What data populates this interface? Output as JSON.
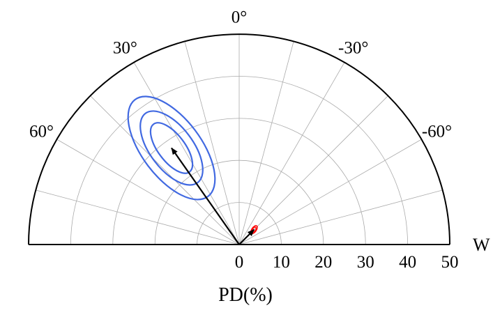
{
  "chart_data": {
    "type": "scatter",
    "projection": "polar-half",
    "title": "",
    "radial_axis": {
      "label": "PD(%)",
      "range": [
        0,
        50
      ],
      "ticks": [
        0,
        10,
        20,
        30,
        40,
        50
      ],
      "tick_labels": [
        "0",
        "10",
        "20",
        "30",
        "40",
        "50"
      ],
      "circle_grid": [
        10,
        20,
        30,
        40
      ]
    },
    "angular_axis": {
      "ticks": [
        60,
        30,
        0,
        -30,
        -60
      ],
      "tick_labels": [
        "60°",
        "30°",
        "0°",
        "-30°",
        "-60°"
      ],
      "grid_angles": [
        75,
        60,
        45,
        30,
        15,
        0,
        -15,
        -30,
        -45,
        -60,
        -75
      ],
      "direction_label": "W",
      "range": [
        -90,
        90
      ]
    },
    "grid": true,
    "colors": {
      "blue": "#4169e1",
      "red": "#ff0000",
      "arrow": "#000000",
      "grid": "#aaaaaa"
    },
    "series": [
      {
        "color": "#4169e1",
        "point": {
          "pd": 28,
          "angle": 35
        },
        "contours": [
          {
            "semi_major": 7.1,
            "semi_minor": 3.2,
            "orientation": 37
          },
          {
            "semi_major": 10.3,
            "semi_minor": 5.1,
            "orientation": 37
          },
          {
            "semi_major": 14.4,
            "semi_minor": 7.0,
            "orientation": 37
          }
        ]
      },
      {
        "color": "#ff0000",
        "point": {
          "pd": 5,
          "angle": -45
        },
        "contours": [
          {
            "semi_major": 1.1,
            "semi_minor": 0.55,
            "orientation": -35
          },
          {
            "semi_major": 0.7,
            "semi_minor": 0.35,
            "orientation": -35
          }
        ]
      }
    ]
  }
}
